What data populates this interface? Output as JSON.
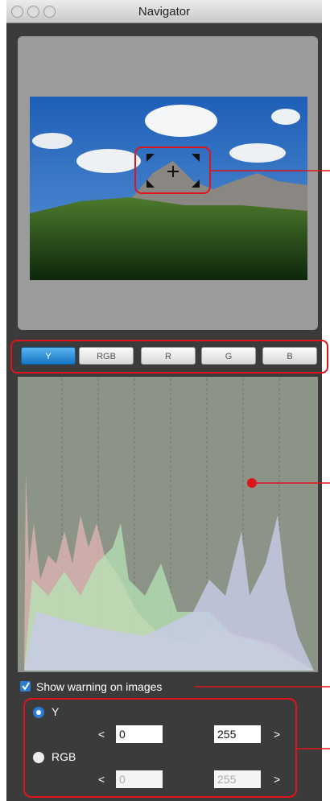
{
  "window": {
    "title": "Navigator"
  },
  "tabs": [
    "Y",
    "RGB",
    "R",
    "G",
    "B"
  ],
  "warning": {
    "label": "Show warning on images"
  },
  "options": [
    {
      "label": "Y",
      "less": "<",
      "low": "0",
      "high": "255",
      "more": ">"
    },
    {
      "label": "RGB",
      "less": "<",
      "low": "0",
      "high": "255",
      "more": ">"
    }
  ]
}
